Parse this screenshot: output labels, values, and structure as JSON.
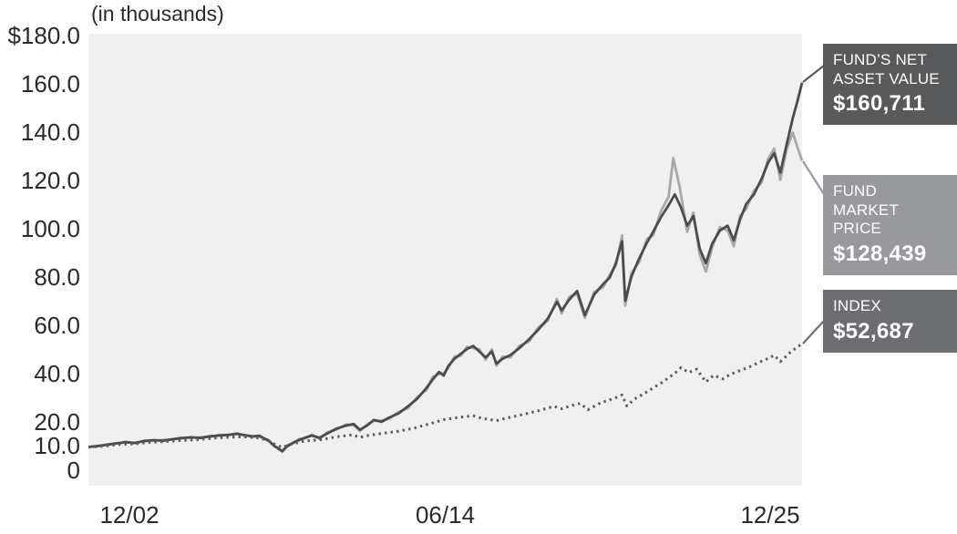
{
  "title": "(in thousands)",
  "chart_data": {
    "type": "line",
    "title": "(in thousands)",
    "xlabel": "",
    "ylabel": "(in thousands)",
    "x_unit": "years since 12/2002",
    "xlim": [
      0,
      23
    ],
    "ylim": [
      0,
      180
    ],
    "grid": false,
    "legend_position": "right-callouts",
    "y_ticks": [
      {
        "label": "$180.0",
        "value": 180
      },
      {
        "label": "160.0",
        "value": 160
      },
      {
        "label": "140.0",
        "value": 140
      },
      {
        "label": "120.0",
        "value": 120
      },
      {
        "label": "100.0",
        "value": 100
      },
      {
        "label": "80.0",
        "value": 80
      },
      {
        "label": "60.0",
        "value": 60
      },
      {
        "label": "40.0",
        "value": 40
      },
      {
        "label": "20.0",
        "value": 20
      },
      {
        "label": "10.0",
        "value": 10
      },
      {
        "label": "0",
        "value": 0
      }
    ],
    "x_ticks": [
      {
        "label": "12/02",
        "value": 0
      },
      {
        "label": "06/14",
        "value": 11.5
      },
      {
        "label": "12/25",
        "value": 23
      }
    ],
    "series": [
      {
        "name": "Fund Market Price",
        "data_name": "fund-market-price-line",
        "final_value": 128439,
        "final_label": "$128,439",
        "color": "#a6a8ab",
        "style": "solid",
        "width": 2.8,
        "points": [
          [
            0,
            10
          ],
          [
            0.3,
            10.2
          ],
          [
            0.6,
            11.1
          ],
          [
            0.9,
            11.3
          ],
          [
            1.2,
            12.2
          ],
          [
            1.5,
            11.5
          ],
          [
            1.8,
            12.7
          ],
          [
            2.1,
            12.6
          ],
          [
            2.4,
            12.9
          ],
          [
            2.7,
            13
          ],
          [
            3,
            13.9
          ],
          [
            3.3,
            13.8
          ],
          [
            3.6,
            14
          ],
          [
            3.9,
            14.1
          ],
          [
            4.2,
            15
          ],
          [
            4.5,
            14.8
          ],
          [
            4.8,
            15.7
          ],
          [
            5,
            14.7
          ],
          [
            5.3,
            14.6
          ],
          [
            5.5,
            14.4
          ],
          [
            5.8,
            12.9
          ],
          [
            6,
            10.1
          ],
          [
            6.15,
            9.4
          ],
          [
            6.25,
            7.9
          ],
          [
            6.4,
            10.7
          ],
          [
            6.6,
            11.5
          ],
          [
            6.8,
            13.3
          ],
          [
            7,
            13.6
          ],
          [
            7.2,
            15.1
          ],
          [
            7.45,
            13.4
          ],
          [
            7.7,
            16
          ],
          [
            8,
            17.2
          ],
          [
            8.3,
            19.3
          ],
          [
            8.55,
            19
          ],
          [
            8.75,
            16.6
          ],
          [
            9,
            19.5
          ],
          [
            9.2,
            20.8
          ],
          [
            9.45,
            20.9
          ],
          [
            9.7,
            21.7
          ],
          [
            10,
            24.5
          ],
          [
            10.3,
            26.1
          ],
          [
            10.6,
            30.7
          ],
          [
            10.9,
            33.7
          ],
          [
            11.1,
            39
          ],
          [
            11.3,
            40.2
          ],
          [
            11.45,
            40.5
          ],
          [
            11.6,
            42.7
          ],
          [
            11.8,
            47.4
          ],
          [
            12,
            47.7
          ],
          [
            12.2,
            51.4
          ],
          [
            12.4,
            50.9
          ],
          [
            12.6,
            50.4
          ],
          [
            12.8,
            46.1
          ],
          [
            13,
            50.4
          ],
          [
            13.15,
            43.6
          ],
          [
            13.35,
            47.4
          ],
          [
            13.6,
            47.1
          ],
          [
            13.9,
            51.9
          ],
          [
            14.2,
            53.6
          ],
          [
            14.5,
            59.4
          ],
          [
            14.8,
            62.1
          ],
          [
            15.1,
            71.2
          ],
          [
            15.25,
            65.3
          ],
          [
            15.5,
            72.1
          ],
          [
            15.75,
            73.4
          ],
          [
            16,
            63.4
          ],
          [
            16.3,
            74.1
          ],
          [
            16.6,
            76.3
          ],
          [
            16.8,
            81.2
          ],
          [
            17,
            85
          ],
          [
            17.2,
            97.5
          ],
          [
            17.3,
            68.5
          ],
          [
            17.5,
            82
          ],
          [
            17.75,
            86.5
          ],
          [
            18,
            96
          ],
          [
            18.2,
            97.5
          ],
          [
            18.45,
            107.5
          ],
          [
            18.7,
            113.5
          ],
          [
            18.85,
            129.5
          ],
          [
            19.05,
            118
          ],
          [
            19.3,
            99
          ],
          [
            19.5,
            107
          ],
          [
            19.7,
            89.5
          ],
          [
            19.9,
            82.5
          ],
          [
            20.1,
            92.5
          ],
          [
            20.35,
            101
          ],
          [
            20.6,
            99.5
          ],
          [
            20.8,
            93
          ],
          [
            21,
            105.5
          ],
          [
            21.2,
            108.5
          ],
          [
            21.45,
            116
          ],
          [
            21.7,
            119.5
          ],
          [
            21.9,
            129
          ],
          [
            22.1,
            133.5
          ],
          [
            22.3,
            120.5
          ],
          [
            22.5,
            133
          ],
          [
            22.7,
            140
          ],
          [
            22.85,
            134
          ],
          [
            23,
            128.439
          ]
        ]
      },
      {
        "name": "Fund's Net Asset Value",
        "data_name": "net-asset-value-line",
        "final_value": 160711,
        "final_label": "$160,711",
        "color": "#4b4b4d",
        "style": "solid",
        "width": 2.8,
        "points": [
          [
            0,
            10
          ],
          [
            0.3,
            10.4
          ],
          [
            0.6,
            10.9
          ],
          [
            0.9,
            11.5
          ],
          [
            1.2,
            11.9
          ],
          [
            1.5,
            11.7
          ],
          [
            1.8,
            12.4
          ],
          [
            2.1,
            12.8
          ],
          [
            2.4,
            12.6
          ],
          [
            2.7,
            13.2
          ],
          [
            3,
            13.6
          ],
          [
            3.3,
            14
          ],
          [
            3.6,
            13.7
          ],
          [
            3.9,
            14.4
          ],
          [
            4.2,
            14.7
          ],
          [
            4.5,
            15
          ],
          [
            4.8,
            15.4
          ],
          [
            5,
            15
          ],
          [
            5.3,
            14.3
          ],
          [
            5.5,
            14.7
          ],
          [
            5.8,
            12.6
          ],
          [
            6,
            10.4
          ],
          [
            6.15,
            9
          ],
          [
            6.25,
            8.3
          ],
          [
            6.4,
            10.2
          ],
          [
            6.6,
            11.8
          ],
          [
            6.8,
            12.9
          ],
          [
            7,
            13.9
          ],
          [
            7.2,
            14.7
          ],
          [
            7.45,
            13.8
          ],
          [
            7.7,
            15.6
          ],
          [
            8,
            17.6
          ],
          [
            8.3,
            18.8
          ],
          [
            8.55,
            19.5
          ],
          [
            8.75,
            17.1
          ],
          [
            9,
            19
          ],
          [
            9.2,
            21.2
          ],
          [
            9.45,
            20.4
          ],
          [
            9.7,
            22.2
          ],
          [
            10,
            23.9
          ],
          [
            10.3,
            26.8
          ],
          [
            10.6,
            30
          ],
          [
            10.9,
            34.5
          ],
          [
            11.1,
            38
          ],
          [
            11.3,
            41
          ],
          [
            11.45,
            39.5
          ],
          [
            11.6,
            43.5
          ],
          [
            11.8,
            46.5
          ],
          [
            12,
            48.5
          ],
          [
            12.2,
            50.5
          ],
          [
            12.4,
            51.8
          ],
          [
            12.6,
            49.5
          ],
          [
            12.8,
            47
          ],
          [
            13,
            49.5
          ],
          [
            13.15,
            44.5
          ],
          [
            13.35,
            46.5
          ],
          [
            13.6,
            48
          ],
          [
            13.9,
            51
          ],
          [
            14.2,
            54.5
          ],
          [
            14.5,
            58.5
          ],
          [
            14.8,
            63
          ],
          [
            15.1,
            70
          ],
          [
            15.25,
            66.5
          ],
          [
            15.5,
            71
          ],
          [
            15.75,
            74.5
          ],
          [
            16,
            64.5
          ],
          [
            16.3,
            73
          ],
          [
            16.6,
            77.5
          ],
          [
            16.8,
            80
          ],
          [
            17,
            86
          ],
          [
            17.2,
            95
          ],
          [
            17.3,
            70.5
          ],
          [
            17.5,
            80.5
          ],
          [
            17.75,
            88
          ],
          [
            18,
            94.5
          ],
          [
            18.2,
            99
          ],
          [
            18.45,
            105
          ],
          [
            18.7,
            110
          ],
          [
            18.9,
            114.5
          ],
          [
            19.1,
            109
          ],
          [
            19.3,
            101.5
          ],
          [
            19.5,
            105.5
          ],
          [
            19.7,
            92
          ],
          [
            19.9,
            86
          ],
          [
            20.1,
            94
          ],
          [
            20.35,
            99.5
          ],
          [
            20.6,
            101.5
          ],
          [
            20.8,
            95.5
          ],
          [
            21,
            104
          ],
          [
            21.2,
            110.5
          ],
          [
            21.45,
            114.5
          ],
          [
            21.7,
            121
          ],
          [
            21.9,
            127.5
          ],
          [
            22.1,
            131.5
          ],
          [
            22.3,
            123.5
          ],
          [
            22.5,
            135
          ],
          [
            22.7,
            146
          ],
          [
            22.85,
            153
          ],
          [
            23,
            160.711
          ]
        ]
      },
      {
        "name": "Index",
        "data_name": "index-line",
        "final_value": 52687,
        "final_label": "$52,687",
        "color": "#5a5b5e",
        "style": "dotted",
        "width": 3,
        "points": [
          [
            0,
            10
          ],
          [
            0.5,
            10.3
          ],
          [
            1,
            11
          ],
          [
            1.5,
            11.3
          ],
          [
            2,
            11.9
          ],
          [
            2.5,
            12.2
          ],
          [
            3,
            12.7
          ],
          [
            3.5,
            13
          ],
          [
            4,
            13.6
          ],
          [
            4.5,
            14
          ],
          [
            5,
            14.2
          ],
          [
            5.5,
            13.7
          ],
          [
            5.8,
            12.6
          ],
          [
            6,
            11.2
          ],
          [
            6.25,
            9.8
          ],
          [
            6.5,
            11.1
          ],
          [
            7,
            12.5
          ],
          [
            7.5,
            13
          ],
          [
            8,
            14.2
          ],
          [
            8.5,
            15
          ],
          [
            8.75,
            14
          ],
          [
            9,
            14.7
          ],
          [
            9.5,
            15.7
          ],
          [
            10,
            16.5
          ],
          [
            10.5,
            17.8
          ],
          [
            11,
            19.6
          ],
          [
            11.5,
            21.4
          ],
          [
            12,
            22.3
          ],
          [
            12.4,
            22.9
          ],
          [
            12.7,
            21.8
          ],
          [
            13.15,
            20.9
          ],
          [
            13.5,
            22
          ],
          [
            14,
            23.4
          ],
          [
            14.5,
            25
          ],
          [
            15,
            26.8
          ],
          [
            15.25,
            25.8
          ],
          [
            15.6,
            27.2
          ],
          [
            15.85,
            28
          ],
          [
            16.1,
            25.4
          ],
          [
            16.5,
            28.2
          ],
          [
            17,
            30.4
          ],
          [
            17.2,
            31.5
          ],
          [
            17.35,
            27
          ],
          [
            17.6,
            29.8
          ],
          [
            18,
            32.8
          ],
          [
            18.5,
            36.8
          ],
          [
            18.9,
            40.5
          ],
          [
            19.1,
            42.8
          ],
          [
            19.35,
            40.8
          ],
          [
            19.6,
            42.2
          ],
          [
            19.9,
            36.9
          ],
          [
            20.15,
            39.6
          ],
          [
            20.45,
            38.2
          ],
          [
            20.7,
            40.1
          ],
          [
            21,
            41.6
          ],
          [
            21.3,
            43.1
          ],
          [
            21.6,
            44.9
          ],
          [
            21.9,
            46.6
          ],
          [
            22.1,
            47.9
          ],
          [
            22.3,
            45.3
          ],
          [
            22.6,
            48.9
          ],
          [
            22.8,
            50.9
          ],
          [
            23,
            52.687
          ]
        ]
      }
    ]
  },
  "callouts": [
    {
      "line1": "FUND’S NET",
      "line2": "ASSET VALUE",
      "value": "$160,711",
      "bg": "#58595b"
    },
    {
      "line1": "FUND",
      "line2": "MARKET",
      "line3": "PRICE",
      "value": "$128,439",
      "bg": "#97999c"
    },
    {
      "line1": "INDEX",
      "value": "$52,687",
      "bg": "#6d6e71"
    }
  ],
  "colors": {
    "plot_background": "#f0f0f1",
    "axis_text": "#2a2a2c",
    "nav_line": "#4b4b4d",
    "market_price_line": "#a6a8ab",
    "index_line": "#5a5b5e"
  }
}
